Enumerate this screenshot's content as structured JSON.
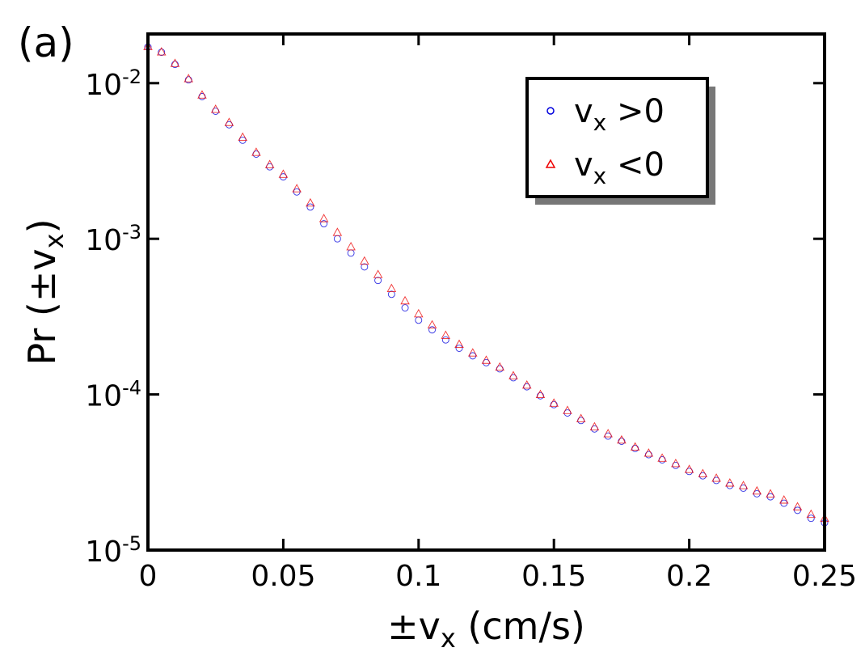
{
  "chart_data": {
    "type": "scatter",
    "panel_label": "(a)",
    "x_label": {
      "pre": "±v",
      "sub": "x",
      "post": " (cm/s)"
    },
    "y_label": {
      "pre": "Pr (±v",
      "sub": "x",
      "post": ")"
    },
    "y_log": true,
    "xlim": [
      0,
      0.25
    ],
    "xticks": [
      0,
      0.05,
      0.1,
      0.15,
      0.2,
      0.25
    ],
    "ylim": [
      1e-05,
      0.0207
    ],
    "yticks": [
      {
        "value": 1e-05,
        "label": "10",
        "exponent": "-5"
      },
      {
        "value": 0.0001,
        "label": "10",
        "exponent": "-4"
      },
      {
        "value": 0.001,
        "label": "10",
        "exponent": "-3"
      },
      {
        "value": 0.01,
        "label": "10",
        "exponent": "-2"
      }
    ],
    "x": [
      0,
      0.005,
      0.01,
      0.015,
      0.02,
      0.025,
      0.03,
      0.035,
      0.04,
      0.045,
      0.05,
      0.055,
      0.06,
      0.065,
      0.07,
      0.075,
      0.08,
      0.085,
      0.09,
      0.095,
      0.1,
      0.105,
      0.11,
      0.115,
      0.12,
      0.125,
      0.13,
      0.135,
      0.14,
      0.145,
      0.15,
      0.155,
      0.16,
      0.165,
      0.17,
      0.175,
      0.18,
      0.185,
      0.19,
      0.195,
      0.2,
      0.205,
      0.21,
      0.215,
      0.22,
      0.225,
      0.23,
      0.235,
      0.24,
      0.245,
      0.25
    ],
    "series": [
      {
        "name": {
          "pre": "v",
          "sub": "x",
          "post": " >0"
        },
        "color": "#0000dd",
        "marker": "circle",
        "values": [
          0.0171,
          0.0158,
          0.0132,
          0.0105,
          0.0082,
          0.0066,
          0.0054,
          0.0043,
          0.0035,
          0.0029,
          0.0025,
          0.002,
          0.0016,
          0.00125,
          0.001,
          0.00081,
          0.00066,
          0.00054,
          0.00044,
          0.00036,
          0.0003,
          0.00026,
          0.000224,
          0.000198,
          0.000177,
          0.00016,
          0.000146,
          0.000128,
          0.000112,
          9.8e-05,
          8.6e-05,
          7.6e-05,
          6.8e-05,
          6e-05,
          5.4e-05,
          5e-05,
          4.5e-05,
          4.1e-05,
          3.8e-05,
          3.5e-05,
          3.2e-05,
          3e-05,
          2.8e-05,
          2.6e-05,
          2.5e-05,
          2.3e-05,
          2.2e-05,
          2e-05,
          1.8e-05,
          1.6e-05,
          1.5e-05
        ]
      },
      {
        "name": {
          "pre": "v",
          "sub": "x",
          "post": " <0"
        },
        "color": "#ee0000",
        "marker": "triangle",
        "values": [
          0.0172,
          0.0159,
          0.0134,
          0.0107,
          0.0084,
          0.0068,
          0.0056,
          0.0045,
          0.0036,
          0.003,
          0.0026,
          0.0021,
          0.0017,
          0.00135,
          0.0011,
          0.00089,
          0.00072,
          0.00059,
          0.00048,
          0.0004,
          0.00033,
          0.00028,
          0.00024,
          0.00021,
          0.000185,
          0.000166,
          0.00015,
          0.000132,
          0.000115,
          0.0001,
          8.8e-05,
          7.9e-05,
          7e-05,
          6.2e-05,
          5.6e-05,
          5.1e-05,
          4.6e-05,
          4.2e-05,
          3.9e-05,
          3.6e-05,
          3.3e-05,
          3.1e-05,
          2.9e-05,
          2.7e-05,
          2.6e-05,
          2.4e-05,
          2.3e-05,
          2.1e-05,
          1.9e-05,
          1.7e-05,
          1.6e-05
        ]
      }
    ]
  }
}
